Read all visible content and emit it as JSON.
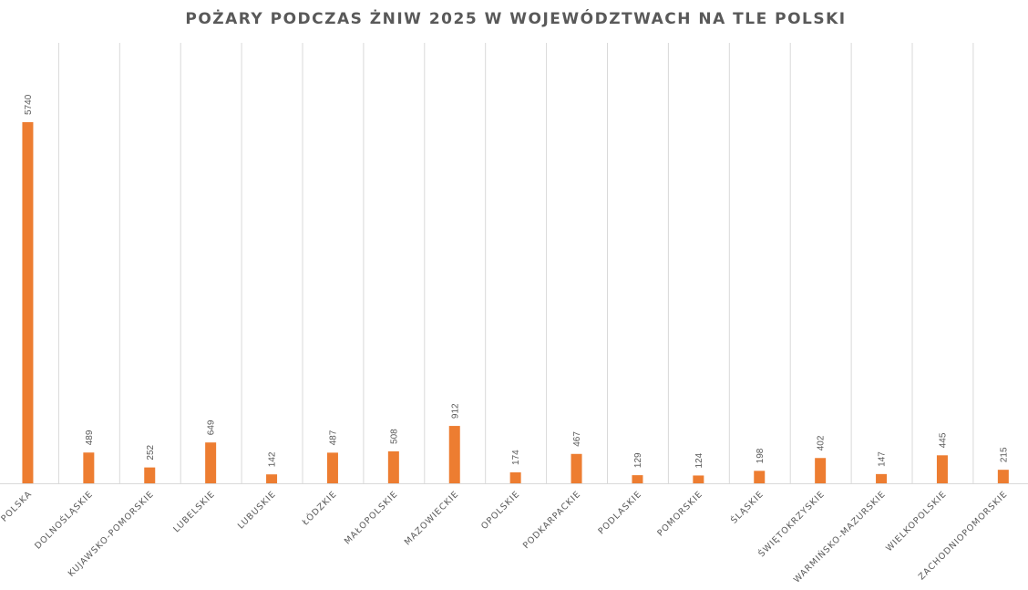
{
  "chart_data": {
    "type": "bar",
    "title": "POŻARY PODCZAS ŻNIW 2025 W WOJEWÓDZTWACH NA TLE POLSKI",
    "xlabel": "",
    "ylabel": "",
    "ylim": [
      0,
      7000
    ],
    "grid": "vertical",
    "legend": "none",
    "color": "#ED7D31",
    "categories": [
      "POLSKA",
      "DOLNOŚLĄSKIE",
      "KUJAWSKO-POMORSKIE",
      "LUBELSKIE",
      "LUBUSKIE",
      "ŁÓDZKIE",
      "MAŁOPOLSKIE",
      "MAZOWIECKIE",
      "OPOLSKIE",
      "PODKARPACKIE",
      "PODLASKIE",
      "POMORSKIE",
      "ŚLĄSKIE",
      "ŚWIĘTOKRZYSKIE",
      "WARMIŃSKO-MAZURSKIE",
      "WIELKOPOLSKIE",
      "ZACHODNIOPOMORSKIE"
    ],
    "values": [
      5740,
      489,
      252,
      649,
      142,
      487,
      508,
      912,
      174,
      467,
      129,
      124,
      198,
      402,
      147,
      445,
      215
    ]
  }
}
